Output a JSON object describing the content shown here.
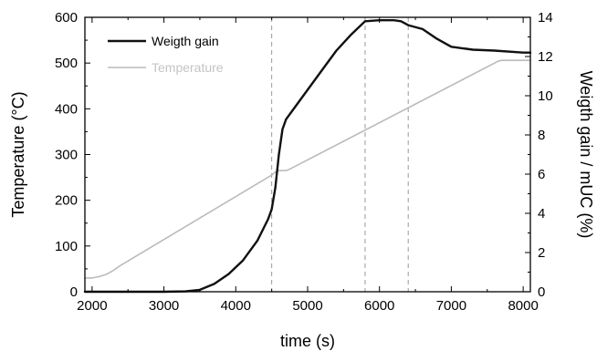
{
  "chart_data": {
    "type": "line",
    "xlabel": "time (s)",
    "ylabel_left": "Temperature (°C)",
    "ylabel_right": "Weigth gain / mUC (%)",
    "xlim": [
      1900,
      8100
    ],
    "ylim_left": [
      0,
      600
    ],
    "ylim_right": [
      0,
      14
    ],
    "x_ticks": [
      2000,
      3000,
      4000,
      5000,
      6000,
      7000,
      8000
    ],
    "y_left_ticks": [
      0,
      100,
      200,
      300,
      400,
      500,
      600
    ],
    "y_right_ticks": [
      0,
      2,
      4,
      6,
      8,
      10,
      12,
      14
    ],
    "vertical_markers": [
      4500,
      5800,
      6400
    ],
    "legend_position": "top-left",
    "grid": false,
    "series": [
      {
        "name": "Weigth gain",
        "axis": "right",
        "color": "#111111",
        "x": [
          1900,
          3000,
          3300,
          3500,
          3700,
          3900,
          4100,
          4300,
          4450,
          4500,
          4550,
          4600,
          4650,
          4700,
          4800,
          5000,
          5200,
          5400,
          5600,
          5800,
          6000,
          6200,
          6300,
          6400,
          6600,
          6800,
          7000,
          7300,
          7600,
          8000,
          8100
        ],
        "values": [
          0,
          0,
          0.02,
          0.1,
          0.4,
          0.9,
          1.6,
          2.6,
          3.7,
          4.2,
          5.3,
          7.0,
          8.3,
          8.8,
          9.3,
          10.3,
          11.3,
          12.3,
          13.1,
          13.8,
          13.85,
          13.85,
          13.8,
          13.6,
          13.4,
          12.9,
          12.5,
          12.35,
          12.3,
          12.2,
          12.2
        ]
      },
      {
        "name": "Temperature",
        "axis": "left",
        "color": "#bbbbbb",
        "x": [
          1900,
          2000,
          2100,
          2200,
          2300,
          2400,
          4500,
          4550,
          4600,
          4650,
          4700,
          4750,
          7650,
          7700,
          8100
        ],
        "values": [
          30,
          30,
          33,
          38,
          47,
          58,
          255,
          262,
          265,
          265,
          265,
          268,
          504,
          506,
          506
        ]
      }
    ]
  }
}
